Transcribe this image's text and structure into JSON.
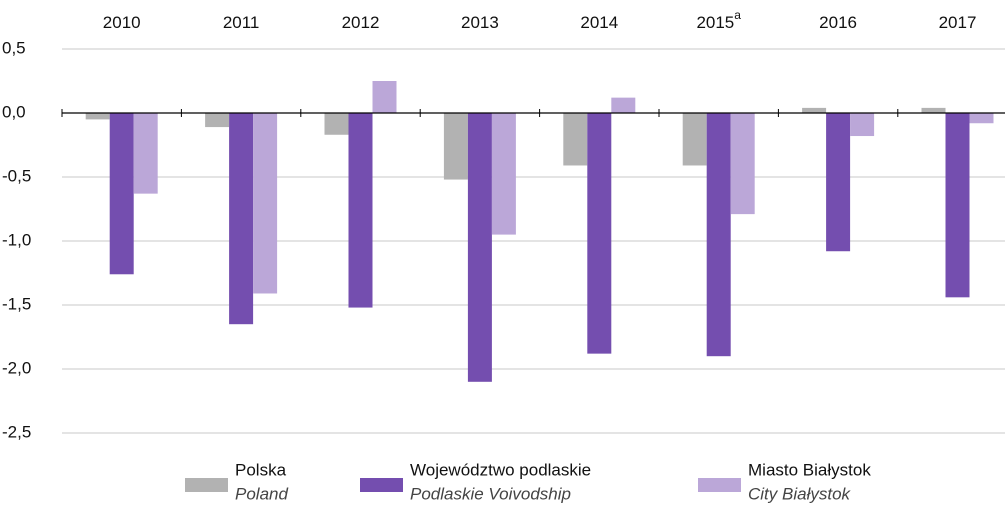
{
  "chart_data": {
    "type": "bar",
    "categories": [
      "2010",
      "2011",
      "2012",
      "2013",
      "2014",
      "2015",
      "2016",
      "2017"
    ],
    "superscripts": [
      null,
      null,
      null,
      null,
      null,
      "a",
      null,
      null
    ],
    "series": [
      {
        "name": "Polska",
        "name_en": "Poland",
        "color": "#b2b2b2",
        "values": [
          -0.05,
          -0.11,
          -0.17,
          -0.52,
          -0.41,
          -0.41,
          0.04,
          0.04
        ]
      },
      {
        "name": "Województwo podlaskie",
        "name_en": "Podlaskie Voivodship",
        "color": "#744eaf",
        "values": [
          -1.26,
          -1.65,
          -1.52,
          -2.1,
          -1.88,
          -1.9,
          -1.08,
          -1.44
        ]
      },
      {
        "name": "Miasto Białystok",
        "name_en": "City Białystok",
        "color": "#bba7d8",
        "values": [
          -0.63,
          -1.41,
          0.25,
          -0.95,
          0.12,
          -0.79,
          -0.18,
          -0.08
        ]
      }
    ],
    "ylim": [
      -2.5,
      0.5
    ],
    "yticks": [
      {
        "value": 0.5,
        "label": "0,5"
      },
      {
        "value": 0,
        "label": "0,0"
      },
      {
        "value": -0.5,
        "label": "-0,5"
      },
      {
        "value": -1,
        "label": "-1,0"
      },
      {
        "value": -1.5,
        "label": "-1,5"
      },
      {
        "value": -2,
        "label": "-2,0"
      },
      {
        "value": -2.5,
        "label": "-2,5"
      }
    ],
    "grid": true,
    "legend": "bottom"
  }
}
